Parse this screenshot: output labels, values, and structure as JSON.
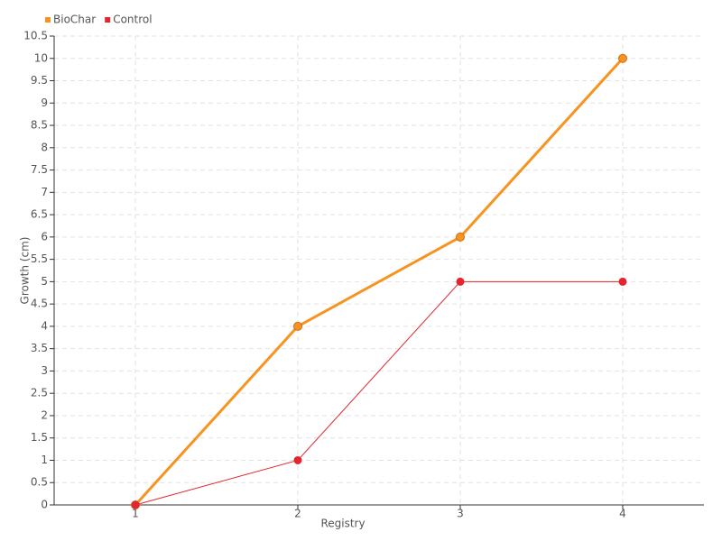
{
  "chart_data": {
    "type": "line",
    "x_label": "Registry",
    "y_label": "Growth (cm)",
    "categories": [
      "1",
      "2",
      "3",
      "4"
    ],
    "series": [
      {
        "name": "BioChar",
        "color": "#f7931e",
        "values": [
          0,
          4,
          6,
          10
        ]
      },
      {
        "name": "Control",
        "color": "#e3262e",
        "values": [
          0,
          1,
          5,
          5
        ]
      }
    ],
    "ylim": [
      0,
      10.5
    ],
    "yticks": [
      0,
      0.5,
      1,
      1.5,
      2,
      2.5,
      3,
      3.5,
      4,
      4.5,
      5,
      5.5,
      6,
      6.5,
      7,
      7.5,
      8,
      8.5,
      9,
      9.5,
      10,
      10.5
    ],
    "grid": true,
    "legend": "top-left"
  }
}
